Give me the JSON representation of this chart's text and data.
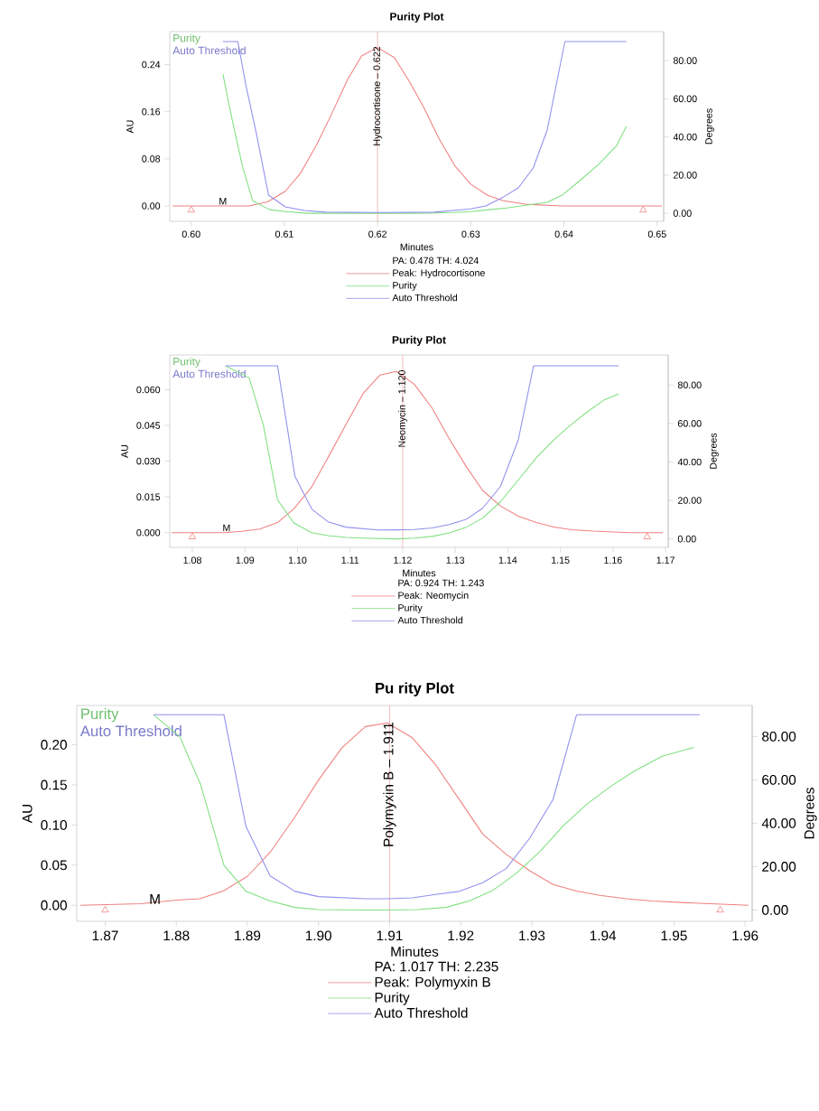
{
  "chart_data": [
    {
      "type": "line",
      "title": "Purity Plot",
      "xlabel": "Minutes",
      "ylabel": "AU",
      "y2label": "Degrees",
      "legend_title": "PA: 0.478 TH: 4.024",
      "legend": "bottom",
      "xlim": [
        0.5977,
        0.6507
      ],
      "ylim": [
        -0.026,
        0.296
      ],
      "y2lim": [
        -4.2,
        95.2
      ],
      "xticks": [
        {
          "value": 0.6,
          "label": "0.60"
        },
        {
          "value": 0.61,
          "label": "0.61"
        },
        {
          "value": 0.62,
          "label": "0.62"
        },
        {
          "value": 0.63,
          "label": "0.63"
        },
        {
          "value": 0.64,
          "label": "0.64"
        },
        {
          "value": 0.65,
          "label": "0.65"
        }
      ],
      "yticks": [
        {
          "value": 0,
          "label": "0.00"
        },
        {
          "value": 0.08,
          "label": "0.08"
        },
        {
          "value": 0.16,
          "label": "0.16"
        },
        {
          "value": 0.24,
          "label": "0.24"
        }
      ],
      "y2ticks": [
        {
          "value": 0,
          "label": "0.00"
        },
        {
          "value": 20,
          "label": "20.00"
        },
        {
          "value": 40,
          "label": "40.00"
        },
        {
          "value": 60,
          "label": "60.00"
        },
        {
          "value": 80,
          "label": "80.00"
        }
      ],
      "ref_lines": [
        {
          "axis": "x",
          "value": 0.62,
          "label": "Hydrocortisone – 0.622",
          "color": "#f08080"
        }
      ],
      "annotations": [
        {
          "text": "M",
          "x": 0.6034,
          "y": 0
        }
      ],
      "series": [
        {
          "name": "Peak: Hydrocortisone",
          "color": "#f08080",
          "x": [
            0.598,
            0.6062,
            0.6082,
            0.6101,
            0.6117,
            0.6135,
            0.615,
            0.6168,
            0.6183,
            0.62,
            0.6218,
            0.6235,
            0.625,
            0.6265,
            0.6283,
            0.63,
            0.6318,
            0.6335,
            0.6359,
            0.6398,
            0.6505
          ],
          "values": [
            0,
            0,
            0.007,
            0.025,
            0.055,
            0.105,
            0.154,
            0.215,
            0.255,
            0.269,
            0.252,
            0.209,
            0.166,
            0.117,
            0.068,
            0.037,
            0.018,
            0.009,
            0.003,
            0,
            0
          ]
        },
        {
          "name": "Purity",
          "color": "#80e080",
          "axis": "y2",
          "x": [
            0.6034,
            0.6043,
            0.6055,
            0.6066,
            0.6084,
            0.6101,
            0.6125,
            0.6164,
            0.6203,
            0.6242,
            0.6281,
            0.63,
            0.632,
            0.6339,
            0.6359,
            0.6382,
            0.6398,
            0.6417,
            0.6437,
            0.6456,
            0.6467
          ],
          "values": [
            73.0,
            51.2,
            24.6,
            6.6,
            1.9,
            0.9,
            0,
            0,
            0,
            0,
            0.4,
            0.9,
            1.9,
            2.8,
            4.2,
            5.7,
            9.5,
            17.1,
            25.6,
            35.1,
            45.5
          ]
        },
        {
          "name": "Auto Threshold",
          "color": "#9090ee",
          "axis": "y2",
          "x": [
            0.6034,
            0.605,
            0.6059,
            0.607,
            0.6083,
            0.6101,
            0.6121,
            0.6144,
            0.6203,
            0.6261,
            0.63,
            0.6316,
            0.6335,
            0.6351,
            0.6367,
            0.6382,
            0.6401,
            0.6467
          ],
          "values": [
            90,
            90,
            66.4,
            41.7,
            9.5,
            3.4,
            1.5,
            0.6,
            0.4,
            0.6,
            2.3,
            3.8,
            8.5,
            13.3,
            23.7,
            43.6,
            90,
            90
          ]
        },
        {
          "type": "scatter",
          "marker": "triangle",
          "color": "#f08080",
          "x": [
            0.6,
            0.6485
          ],
          "values": [
            -0.007,
            -0.007
          ]
        }
      ]
    },
    {
      "type": "line",
      "title": "Purity Plot",
      "xlabel": "Minutes",
      "ylabel": "AU",
      "y2label": "Degrees",
      "legend_title": "PA: 0.924 TH: 1.243",
      "legend": "bottom",
      "xlim": [
        1.0757,
        1.1705
      ],
      "ylim": [
        -0.0062,
        0.0746
      ],
      "y2lim": [
        -4.4,
        95.6
      ],
      "xticks": [
        {
          "value": 1.08,
          "label": "1.08"
        },
        {
          "value": 1.09,
          "label": "1.09"
        },
        {
          "value": 1.1,
          "label": "1.10"
        },
        {
          "value": 1.11,
          "label": "1.11"
        },
        {
          "value": 1.12,
          "label": "1.12"
        },
        {
          "value": 1.13,
          "label": "1.13"
        },
        {
          "value": 1.14,
          "label": "1.14"
        },
        {
          "value": 1.15,
          "label": "1.15"
        },
        {
          "value": 1.16,
          "label": "1.16"
        },
        {
          "value": 1.17,
          "label": "1.17"
        }
      ],
      "yticks": [
        {
          "value": 0,
          "label": "0.000"
        },
        {
          "value": 0.015,
          "label": "0.015"
        },
        {
          "value": 0.03,
          "label": "0.030"
        },
        {
          "value": 0.045,
          "label": "0.045"
        },
        {
          "value": 0.06,
          "label": "0.060"
        }
      ],
      "y2ticks": [
        {
          "value": 0,
          "label": "0.00"
        },
        {
          "value": 20,
          "label": "20.00"
        },
        {
          "value": 40,
          "label": "40.00"
        },
        {
          "value": 60,
          "label": "60.00"
        },
        {
          "value": 80,
          "label": "80.00"
        }
      ],
      "ref_lines": [
        {
          "axis": "x",
          "value": 1.12,
          "label": "Neomycin – 1.120",
          "color": "#f08080"
        }
      ],
      "annotations": [
        {
          "text": "M",
          "x": 1.0865,
          "y": 0
        }
      ],
      "series": [
        {
          "name": "Peak: Neomycin",
          "color": "#f08080",
          "x": [
            1.076,
            1.086,
            1.0894,
            1.0928,
            1.0962,
            1.0993,
            1.1027,
            1.1058,
            1.1092,
            1.1125,
            1.1157,
            1.1188,
            1.1222,
            1.1256,
            1.1287,
            1.1321,
            1.1352,
            1.1386,
            1.142,
            1.1454,
            1.1488,
            1.1522,
            1.1563,
            1.1632,
            1.1695
          ],
          "values": [
            0,
            0,
            0.0005,
            0.0015,
            0.0042,
            0.01,
            0.0192,
            0.0315,
            0.0454,
            0.0585,
            0.0662,
            0.0677,
            0.0623,
            0.0523,
            0.04,
            0.0277,
            0.0177,
            0.0112,
            0.0069,
            0.0042,
            0.0023,
            0.0012,
            0.0006,
            0,
            0
          ]
        },
        {
          "name": "Purity",
          "color": "#80e080",
          "axis": "y2",
          "x": [
            1.0863,
            1.0908,
            1.0935,
            1.0962,
            1.0993,
            1.1027,
            1.1058,
            1.1092,
            1.1126,
            1.1188,
            1.1222,
            1.1256,
            1.129,
            1.1321,
            1.1352,
            1.1386,
            1.142,
            1.1454,
            1.1488,
            1.1515,
            1.155,
            1.1584,
            1.1611
          ],
          "values": [
            90,
            83.8,
            59.2,
            20.3,
            8.3,
            3.2,
            1.7,
            0.8,
            0.4,
            0,
            0.4,
            1.3,
            3.2,
            6.1,
            10.8,
            19.3,
            30.7,
            42.1,
            51.6,
            58.2,
            65.8,
            72.4,
            75.3
          ]
        },
        {
          "name": "Auto Threshold",
          "color": "#9090ee",
          "axis": "y2",
          "x": [
            1.0863,
            1.0962,
            1.0995,
            1.1027,
            1.1058,
            1.1092,
            1.1153,
            1.1188,
            1.1222,
            1.1256,
            1.129,
            1.1321,
            1.1352,
            1.1386,
            1.142,
            1.1449,
            1.1611
          ],
          "values": [
            90,
            90,
            32.6,
            15.5,
            8.9,
            6.1,
            4.6,
            4.7,
            4.9,
            5.7,
            7.6,
            10.2,
            15.9,
            27.3,
            51.6,
            90,
            90
          ]
        },
        {
          "type": "scatter",
          "marker": "triangle",
          "color": "#f08080",
          "x": [
            1.08,
            1.1665
          ],
          "values": [
            -0.0018,
            -0.0018
          ]
        }
      ]
    },
    {
      "type": "line",
      "title": "Pu rity Plot",
      "xlabel": "Minutes",
      "ylabel": "AU",
      "y2label": "Degrees",
      "legend_title": "PA: 1.017 TH: 2.235",
      "legend": "bottom",
      "xlim": [
        1.866,
        1.961
      ],
      "ylim": [
        -0.02,
        0.249
      ],
      "y2lim": [
        -5.2,
        94.3
      ],
      "xticks": [
        {
          "value": 1.87,
          "label": "1.87"
        },
        {
          "value": 1.88,
          "label": "1.88"
        },
        {
          "value": 1.89,
          "label": "1.89"
        },
        {
          "value": 1.9,
          "label": "1.90"
        },
        {
          "value": 1.91,
          "label": "1.91"
        },
        {
          "value": 1.92,
          "label": "1.92"
        },
        {
          "value": 1.93,
          "label": "1.93"
        },
        {
          "value": 1.94,
          "label": "1.94"
        },
        {
          "value": 1.95,
          "label": "1.95"
        },
        {
          "value": 1.96,
          "label": "1.96"
        }
      ],
      "yticks": [
        {
          "value": 0,
          "label": "0.00"
        },
        {
          "value": 0.05,
          "label": "0.05"
        },
        {
          "value": 0.1,
          "label": "0.10"
        },
        {
          "value": 0.15,
          "label": "0.15"
        },
        {
          "value": 0.2,
          "label": "0.20"
        }
      ],
      "y2ticks": [
        {
          "value": 0,
          "label": "0.00"
        },
        {
          "value": 20,
          "label": "20.00"
        },
        {
          "value": 40,
          "label": "40.00"
        },
        {
          "value": 60,
          "label": "60.00"
        },
        {
          "value": 80,
          "label": "80.00"
        }
      ],
      "ref_lines": [
        {
          "axis": "x",
          "value": 1.91,
          "label": "Polymyxin B – 1.911",
          "color": "#f08080"
        }
      ],
      "annotations": [
        {
          "text": "M",
          "x": 1.877,
          "y": 0
        }
      ],
      "series": [
        {
          "name": "Peak: Polymyxin B",
          "color": "#f08080",
          "x": [
            1.8665,
            1.875,
            1.8801,
            1.8833,
            1.8866,
            1.89,
            1.8933,
            1.8967,
            1.9,
            1.9033,
            1.9066,
            1.9097,
            1.9132,
            1.9165,
            1.9198,
            1.9231,
            1.9264,
            1.9297,
            1.933,
            1.9363,
            1.9396,
            1.9433,
            1.9469,
            1.9528,
            1.9605
          ],
          "values": [
            0,
            0.002,
            0.0065,
            0.0081,
            0.0177,
            0.036,
            0.0672,
            0.1103,
            0.156,
            0.1963,
            0.2227,
            0.227,
            0.2087,
            0.1748,
            0.1318,
            0.0888,
            0.0635,
            0.043,
            0.0258,
            0.0178,
            0.0124,
            0.0081,
            0.0054,
            0.0027,
            0
          ]
        },
        {
          "name": "Purity",
          "color": "#80e080",
          "axis": "y2",
          "x": [
            1.8768,
            1.8805,
            1.8834,
            1.8867,
            1.8898,
            1.8932,
            1.8967,
            1.9,
            1.9066,
            1.9097,
            1.9139,
            1.9179,
            1.9212,
            1.9246,
            1.9279,
            1.9312,
            1.9345,
            1.9378,
            1.9411,
            1.9444,
            1.9484,
            1.9528
          ],
          "values": [
            90,
            79.9,
            58.0,
            20.7,
            8.6,
            4.2,
            1.2,
            0.2,
            0,
            0,
            0.2,
            1.2,
            4.2,
            9.2,
            17.1,
            27.1,
            39.1,
            49.0,
            57.0,
            64.0,
            71.0,
            74.9
          ]
        },
        {
          "name": "Auto Threshold",
          "color": "#9090ee",
          "axis": "y2",
          "x": [
            1.8768,
            1.8867,
            1.8898,
            1.8932,
            1.8967,
            1.9,
            1.9066,
            1.9097,
            1.9132,
            1.9165,
            1.9198,
            1.9231,
            1.9264,
            1.9297,
            1.933,
            1.9363,
            1.9536
          ],
          "values": [
            90,
            90,
            38.5,
            15.7,
            8.6,
            6.2,
            5.2,
            5.2,
            5.6,
            7.2,
            8.6,
            12.6,
            19.1,
            33.1,
            51.0,
            90,
            90
          ]
        },
        {
          "type": "scatter",
          "marker": "triangle",
          "color": "#f08080",
          "x": [
            1.87,
            1.9565
          ],
          "values": [
            -0.006,
            -0.006
          ]
        }
      ]
    }
  ]
}
